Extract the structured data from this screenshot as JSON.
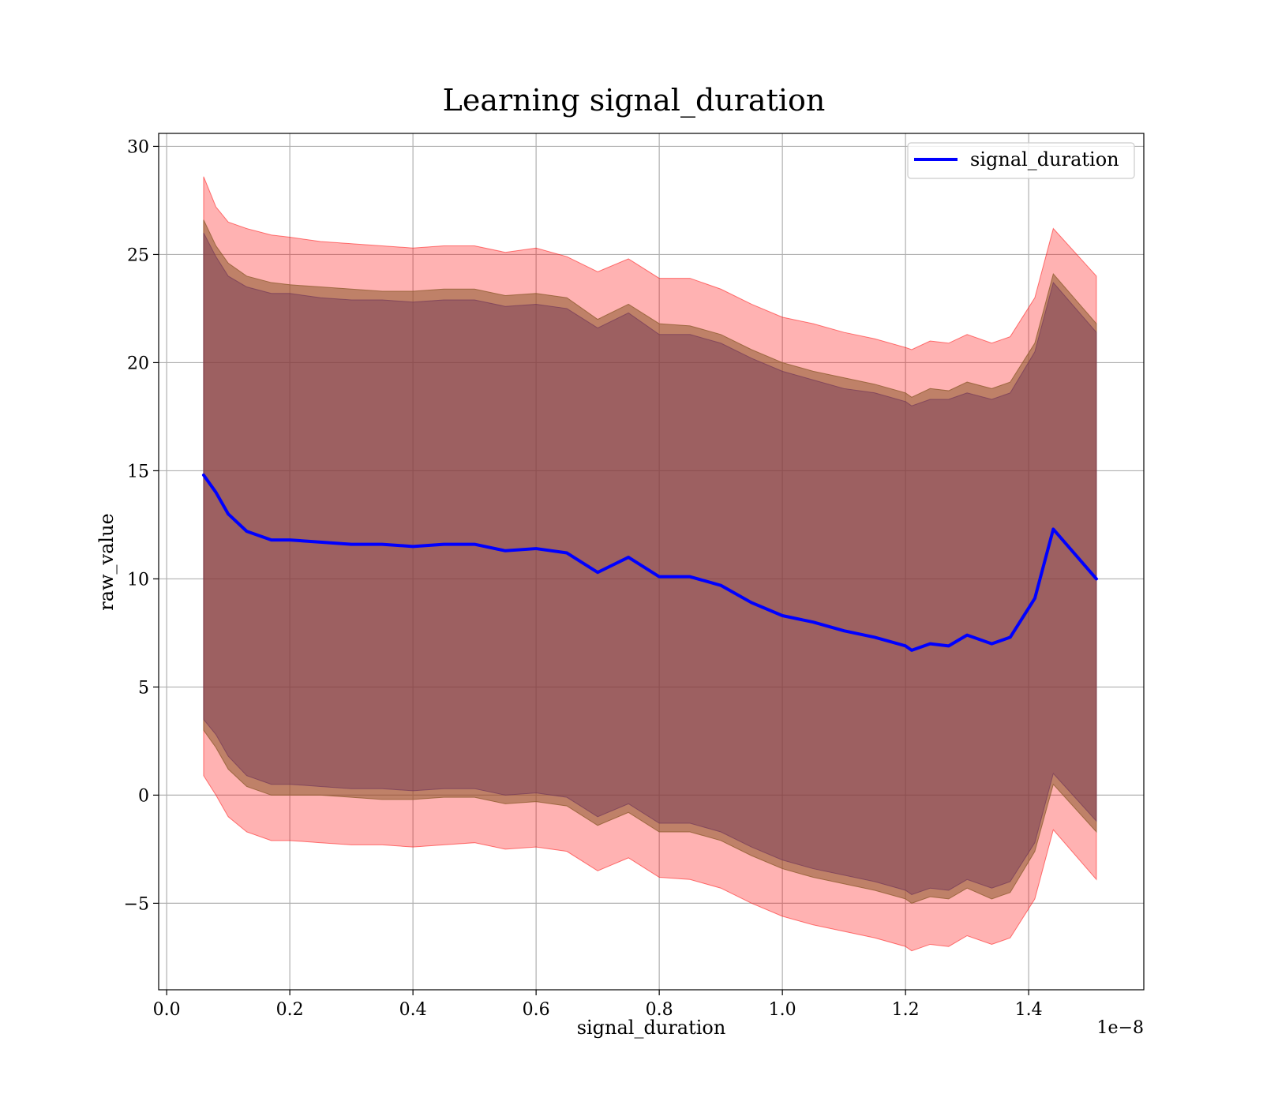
{
  "chart_data": {
    "type": "line",
    "title": "Learning signal_duration",
    "xlabel": "signal_duration",
    "ylabel": "raw_value",
    "x_offset_label": "1e−8",
    "xlim": [
      -0.013,
      1.587
    ],
    "ylim": [
      -9.0,
      30.6
    ],
    "x_ticks": [
      0.0,
      0.2,
      0.4,
      0.6,
      0.8,
      1.0,
      1.2,
      1.4
    ],
    "x_tick_labels": [
      "0.0",
      "0.2",
      "0.4",
      "0.6",
      "0.8",
      "1.0",
      "1.2",
      "1.4"
    ],
    "y_ticks": [
      -5,
      0,
      5,
      10,
      15,
      20,
      25,
      30
    ],
    "y_tick_labels": [
      "−5",
      "0",
      "5",
      "10",
      "15",
      "20",
      "25",
      "30"
    ],
    "grid": true,
    "legend_position": "top-right",
    "x": [
      0.06,
      0.08,
      0.1,
      0.13,
      0.17,
      0.2,
      0.25,
      0.3,
      0.35,
      0.4,
      0.45,
      0.5,
      0.55,
      0.6,
      0.65,
      0.7,
      0.75,
      0.8,
      0.85,
      0.9,
      0.95,
      1.0,
      1.05,
      1.1,
      1.15,
      1.2,
      1.21,
      1.24,
      1.27,
      1.3,
      1.34,
      1.37,
      1.41,
      1.44,
      1.51
    ],
    "series": [
      {
        "name": "signal_duration",
        "color": "#0000ff",
        "values": [
          14.8,
          14.0,
          13.0,
          12.2,
          11.8,
          11.8,
          11.7,
          11.6,
          11.6,
          11.5,
          11.6,
          11.6,
          11.3,
          11.4,
          11.2,
          10.3,
          11.0,
          10.1,
          10.1,
          9.7,
          8.9,
          8.3,
          8.0,
          7.6,
          7.3,
          6.9,
          6.7,
          7.0,
          6.9,
          7.4,
          7.0,
          7.3,
          9.1,
          12.3,
          10.0
        ]
      }
    ],
    "bands": [
      {
        "color": "#ff0000",
        "opacity": 0.3,
        "upper": [
          28.6,
          27.2,
          26.5,
          26.2,
          25.9,
          25.8,
          25.6,
          25.5,
          25.4,
          25.3,
          25.4,
          25.4,
          25.1,
          25.3,
          24.9,
          24.2,
          24.8,
          23.9,
          23.9,
          23.4,
          22.7,
          22.1,
          21.8,
          21.4,
          21.1,
          20.7,
          20.6,
          21.0,
          20.9,
          21.3,
          20.9,
          21.2,
          23.0,
          26.2,
          24.0
        ],
        "lower": [
          0.9,
          0.0,
          -1.0,
          -1.7,
          -2.1,
          -2.1,
          -2.2,
          -2.3,
          -2.3,
          -2.4,
          -2.3,
          -2.2,
          -2.5,
          -2.4,
          -2.6,
          -3.5,
          -2.9,
          -3.8,
          -3.9,
          -4.3,
          -5.0,
          -5.6,
          -6.0,
          -6.3,
          -6.6,
          -7.0,
          -7.2,
          -6.9,
          -7.0,
          -6.5,
          -6.9,
          -6.6,
          -4.8,
          -1.6,
          -3.9
        ]
      },
      {
        "color": "#8b5a2b",
        "opacity": 0.55,
        "upper": [
          26.6,
          25.4,
          24.6,
          24.0,
          23.7,
          23.6,
          23.5,
          23.4,
          23.3,
          23.3,
          23.4,
          23.4,
          23.1,
          23.2,
          23.0,
          22.0,
          22.7,
          21.8,
          21.7,
          21.3,
          20.6,
          20.0,
          19.6,
          19.3,
          19.0,
          18.6,
          18.4,
          18.8,
          18.7,
          19.1,
          18.8,
          19.1,
          20.9,
          24.1,
          21.8
        ],
        "lower": [
          3.0,
          2.2,
          1.2,
          0.4,
          0.0,
          0.0,
          0.0,
          -0.1,
          -0.2,
          -0.2,
          -0.1,
          -0.1,
          -0.4,
          -0.3,
          -0.5,
          -1.4,
          -0.8,
          -1.7,
          -1.7,
          -2.1,
          -2.8,
          -3.4,
          -3.8,
          -4.1,
          -4.4,
          -4.8,
          -5.0,
          -4.7,
          -4.8,
          -4.3,
          -4.8,
          -4.5,
          -2.6,
          0.5,
          -1.7
        ]
      },
      {
        "color": "#6b3058",
        "opacity": 0.4,
        "upper": [
          26.0,
          24.9,
          24.0,
          23.5,
          23.2,
          23.2,
          23.0,
          22.9,
          22.9,
          22.8,
          22.9,
          22.9,
          22.6,
          22.7,
          22.5,
          21.6,
          22.3,
          21.3,
          21.3,
          20.9,
          20.2,
          19.6,
          19.2,
          18.8,
          18.6,
          18.2,
          18.0,
          18.3,
          18.3,
          18.6,
          18.3,
          18.6,
          20.5,
          23.7,
          21.4
        ],
        "lower": [
          3.5,
          2.8,
          1.8,
          0.9,
          0.5,
          0.5,
          0.4,
          0.3,
          0.3,
          0.2,
          0.3,
          0.3,
          0.0,
          0.1,
          -0.1,
          -1.0,
          -0.4,
          -1.3,
          -1.3,
          -1.7,
          -2.4,
          -3.0,
          -3.4,
          -3.7,
          -4.0,
          -4.4,
          -4.6,
          -4.3,
          -4.4,
          -3.9,
          -4.3,
          -4.0,
          -2.2,
          1.0,
          -1.2
        ]
      }
    ]
  }
}
